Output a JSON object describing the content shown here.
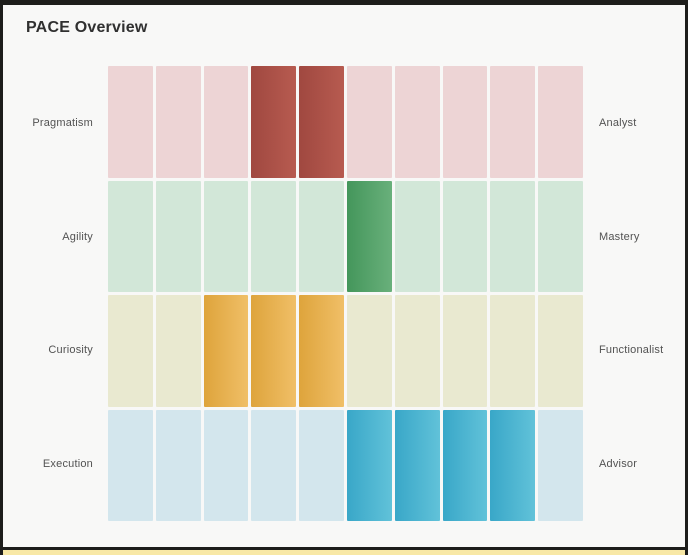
{
  "window": {
    "title": "PACE Overview",
    "background": "#f8f8f7",
    "frame_color": "#1d1d1b",
    "bottom_strip_color": "#f8e8a6"
  },
  "chart_data": {
    "type": "heatmap",
    "title": "PACE Overview",
    "columns": 10,
    "legend": "none",
    "rows": [
      {
        "left_label": "Pragmatism",
        "right_label": "Analyst",
        "cells_total": 10,
        "highlighted_cells": [
          4,
          5
        ],
        "score": 2,
        "base_color": "#edd4d5",
        "highlight_gradient": [
          "#a04840",
          "#b75b50"
        ]
      },
      {
        "left_label": "Agility",
        "right_label": "Mastery",
        "cells_total": 10,
        "highlighted_cells": [
          6
        ],
        "score": 1,
        "base_color": "#d2e7d8",
        "highlight_gradient": [
          "#44965b",
          "#69b07b"
        ]
      },
      {
        "left_label": "Curiosity",
        "right_label": "Functionalist",
        "cells_total": 10,
        "highlighted_cells": [
          3,
          4,
          5
        ],
        "score": 3,
        "base_color": "#e9e9d0",
        "highlight_gradient": [
          "#dea43c",
          "#f0bf67"
        ]
      },
      {
        "left_label": "Execution",
        "right_label": "Advisor",
        "cells_total": 10,
        "highlighted_cells": [
          6,
          7,
          8,
          9
        ],
        "score": 4,
        "base_color": "#d3e6ed",
        "highlight_gradient": [
          "#39a7c8",
          "#61c2d9"
        ]
      }
    ]
  }
}
